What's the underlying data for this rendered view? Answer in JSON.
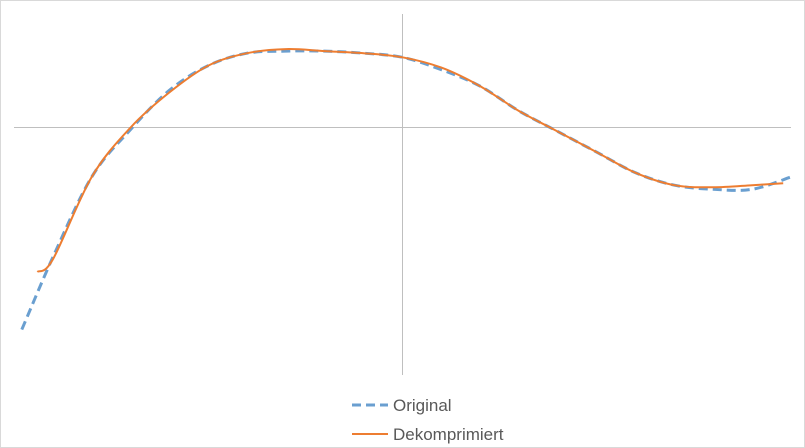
{
  "chart_data": {
    "type": "line",
    "title": "",
    "xlabel": "",
    "ylabel": "",
    "xlim": [
      -1.0,
      1.0
    ],
    "ylim": [
      -1.2,
      0.55
    ],
    "axes": {
      "x_axis_at_y": 0,
      "y_axis_at_x": 0,
      "tick_labels": false,
      "grid": false
    },
    "legend_position": "bottom",
    "series": [
      {
        "name": "Original",
        "color": "#6a9fd0",
        "style": "dashed",
        "x": [
          -0.98,
          -0.9,
          -0.8,
          -0.7,
          -0.6,
          -0.5,
          -0.4,
          -0.3,
          -0.2,
          -0.1,
          0.0,
          0.1,
          0.2,
          0.3,
          0.4,
          0.5,
          0.6,
          0.7,
          0.8,
          0.9,
          1.0
        ],
        "y": [
          -0.98,
          -0.63,
          -0.24,
          -0.01,
          0.18,
          0.3,
          0.36,
          0.37,
          0.37,
          0.36,
          0.34,
          0.28,
          0.2,
          0.08,
          -0.02,
          -0.12,
          -0.22,
          -0.28,
          -0.3,
          -0.3,
          -0.24
        ]
      },
      {
        "name": "Dekomprimiert",
        "color": "#ed7d31",
        "style": "solid",
        "x": [
          -0.94,
          -0.9,
          -0.8,
          -0.7,
          -0.6,
          -0.5,
          -0.4,
          -0.3,
          -0.2,
          -0.1,
          0.0,
          0.1,
          0.2,
          0.3,
          0.4,
          0.5,
          0.6,
          0.7,
          0.8,
          0.9,
          0.98
        ],
        "y": [
          -0.7,
          -0.64,
          -0.24,
          0.0,
          0.17,
          0.3,
          0.36,
          0.38,
          0.37,
          0.36,
          0.34,
          0.29,
          0.2,
          0.08,
          -0.02,
          -0.12,
          -0.22,
          -0.28,
          -0.29,
          -0.28,
          -0.27
        ]
      }
    ]
  }
}
